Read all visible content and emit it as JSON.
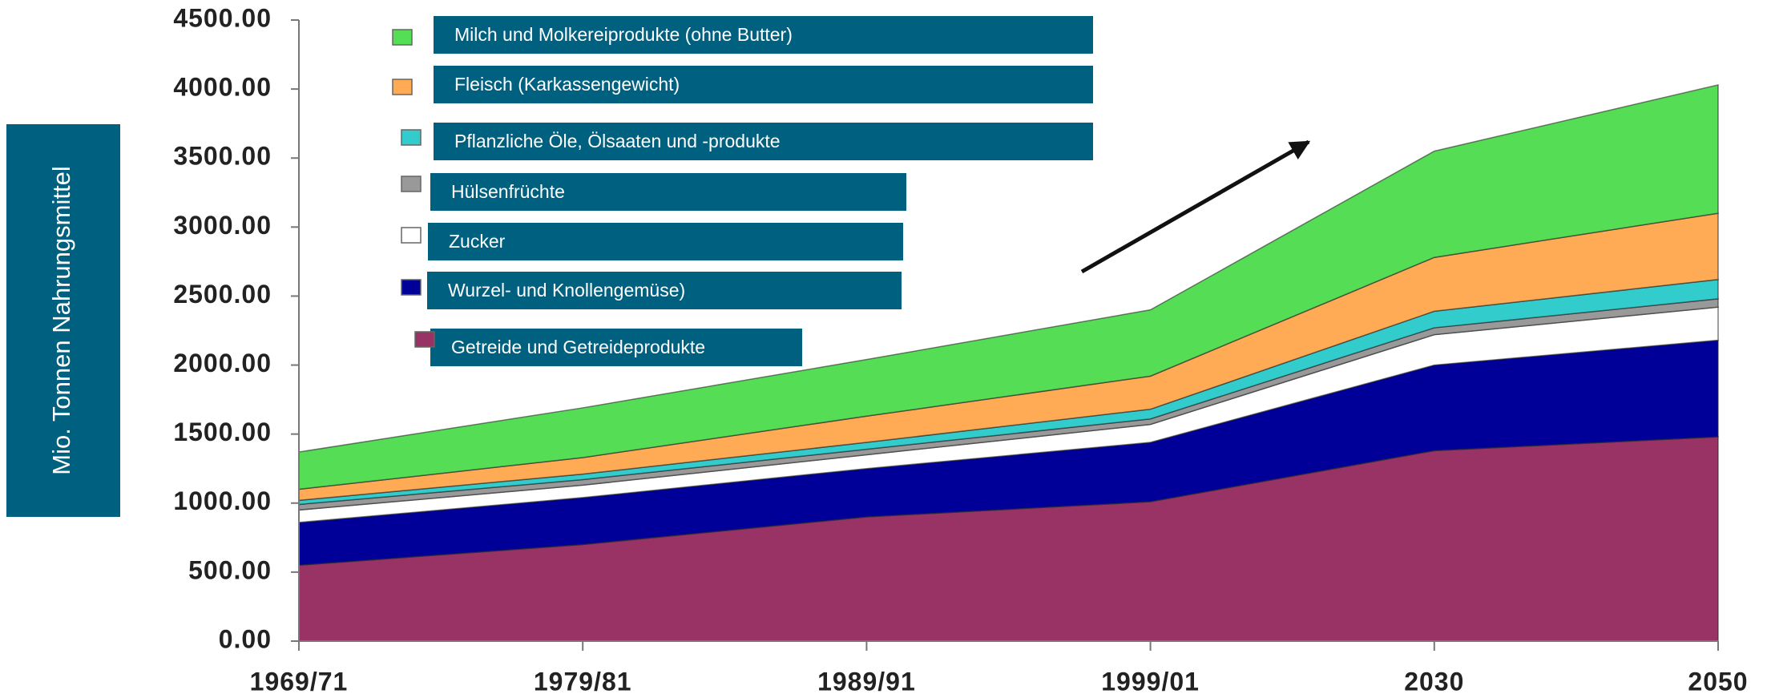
{
  "chart_data": {
    "type": "stacked_area",
    "y_label": "Mio. Tonnen  Nahrungsmittel",
    "categories": [
      "1969/71",
      "1979/81",
      "1989/91",
      "1999/01",
      "2030",
      "2050"
    ],
    "series": [
      {
        "name": "Getreide und Getreideprodukte",
        "color": "#993366",
        "values": [
          550,
          700,
          900,
          1010,
          1380,
          1480
        ]
      },
      {
        "name": "Wurzel- und Knollengemüse)",
        "color": "#000099",
        "values": [
          310,
          340,
          350,
          430,
          620,
          700
        ]
      },
      {
        "name": "Zucker",
        "color": "#ffffff",
        "values": [
          90,
          90,
          100,
          130,
          220,
          240
        ]
      },
      {
        "name": "Hülsenfrüchte",
        "color": "#999999",
        "values": [
          40,
          40,
          40,
          40,
          50,
          60
        ]
      },
      {
        "name": "Pflanzliche Öle, Ölsaaten und -produkte",
        "color": "#33cccc",
        "values": [
          30,
          40,
          50,
          70,
          120,
          140
        ]
      },
      {
        "name": "Fleisch (Karkassengewicht)",
        "color": "#ffaa55",
        "values": [
          80,
          120,
          190,
          240,
          390,
          480
        ]
      },
      {
        "name": "Milch und Molkereiprodukte (ohne Butter)",
        "color": "#55dd55",
        "values": [
          270,
          360,
          410,
          480,
          770,
          930
        ]
      }
    ],
    "ylim": [
      0,
      4500
    ],
    "yticks": [
      {
        "value": 0,
        "label": "0.00"
      },
      {
        "value": 500,
        "label": "500.00"
      },
      {
        "value": 1000,
        "label": "1000.00"
      },
      {
        "value": 1500,
        "label": "1500.00"
      },
      {
        "value": 2000,
        "label": "2000.00"
      },
      {
        "value": 2500,
        "label": "2500.00"
      },
      {
        "value": 3000,
        "label": "3000.00"
      },
      {
        "value": 3500,
        "label": "3500.00"
      },
      {
        "value": 4000,
        "label": "4000.00"
      },
      {
        "value": 4500,
        "label": "4500.00"
      }
    ]
  }
}
